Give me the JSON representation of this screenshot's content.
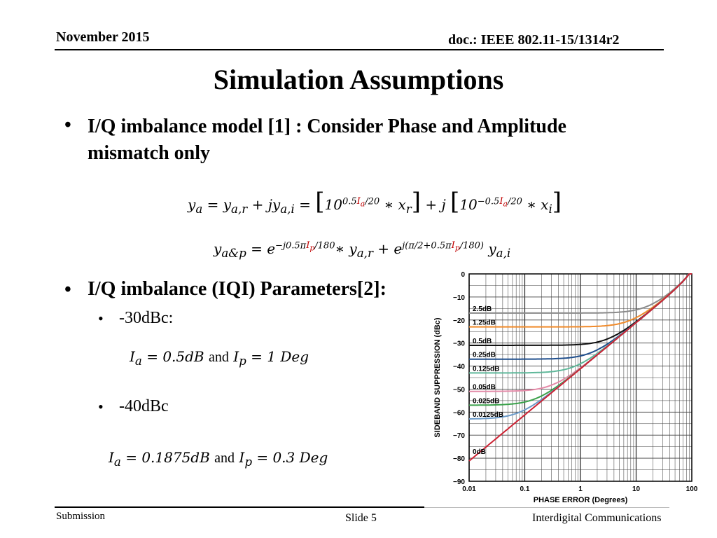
{
  "header": {
    "date": "November 2015",
    "doc": "doc.: IEEE 802.11-15/1314r2"
  },
  "title": "Simulation Assumptions",
  "bullets": {
    "b1": "I/Q imbalance model [1] : Consider Phase and Amplitude mismatch only",
    "b2": "I/Q imbalance (IQI) Parameters[2]:",
    "sub1": "-30dBc:",
    "sub2": "-40dBc",
    "and": "and"
  },
  "footer": {
    "submission": "Submission",
    "slide": "Slide 5",
    "company": "Interdigital Communications"
  },
  "colors": {
    "accent_red": "#c00000"
  },
  "chart_data": {
    "type": "line",
    "xlabel": "PHASE ERROR (Degrees)",
    "ylabel": "SIDEBAND SUPPRESSION (dBc)",
    "x_scale": "log",
    "xlim": [
      0.01,
      100
    ],
    "ylim": [
      -90,
      0
    ],
    "x_ticks": [
      "0.01",
      "0.1",
      "1",
      "10",
      "100"
    ],
    "y_ticks": [
      "0",
      "−10",
      "−20",
      "−30",
      "−40",
      "−50",
      "−60",
      "−70",
      "−80",
      "−90"
    ],
    "grid": true,
    "series": [
      {
        "name": "2.5dB",
        "color": "#8a8a8a",
        "floor": -17.0
      },
      {
        "name": "1.25dB",
        "color": "#f08a2a",
        "floor": -23.0
      },
      {
        "name": "0.5dB",
        "color": "#111111",
        "floor": -31.0
      },
      {
        "name": "0.25dB",
        "color": "#1f4e8c",
        "floor": -37.0
      },
      {
        "name": "0.125dB",
        "color": "#5fb89a",
        "floor": -43.0
      },
      {
        "name": "0.05dB",
        "color": "#e48aa8",
        "floor": -51.0
      },
      {
        "name": "0.025dB",
        "color": "#3aa14a",
        "floor": -57.0
      },
      {
        "name": "0.0125dB",
        "color": "#6a9ac8",
        "floor": -63.0
      },
      {
        "name": "0dB",
        "color": "#cc2233",
        "floor": null
      }
    ]
  }
}
